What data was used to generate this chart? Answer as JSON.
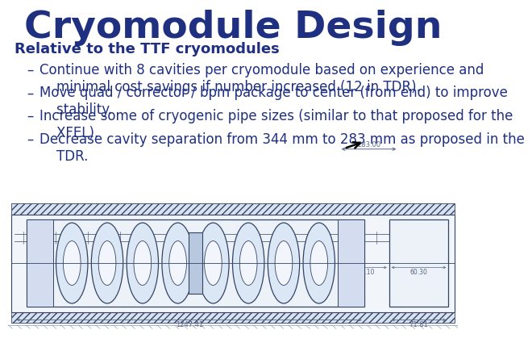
{
  "title": "Cryomodule Design",
  "title_color": "#1F3080",
  "title_fontsize": 34,
  "subtitle": "Relative to the TTF cryomodules",
  "subtitle_fontsize": 13,
  "subtitle_color": "#1F3080",
  "bullet_color": "#1F3080",
  "bullet_fontsize": 12,
  "bullets": [
    "Continue with 8 cavities per cryomodule based on experience and\n    minimal cost savings if number increased (12 in TDR).",
    "Move quad / corrector / bpm package to center (from end) to improve\n    stability.",
    "Increase some of cryogenic pipe sizes (similar to that proposed for the\n    XFEL).",
    "Decrease cavity separation from 344 mm to 283 mm as proposed in the\n    TDR."
  ],
  "dash": "–",
  "background_color": "#ffffff",
  "line_color": "#6677aa",
  "dark_line": "#334466",
  "hatch_color": "#8899bb",
  "body_fill": "#e8eef6",
  "cavity_fill": "#dce6f2",
  "cap_fill": "#c8d4e4",
  "dim_color": "#556688"
}
